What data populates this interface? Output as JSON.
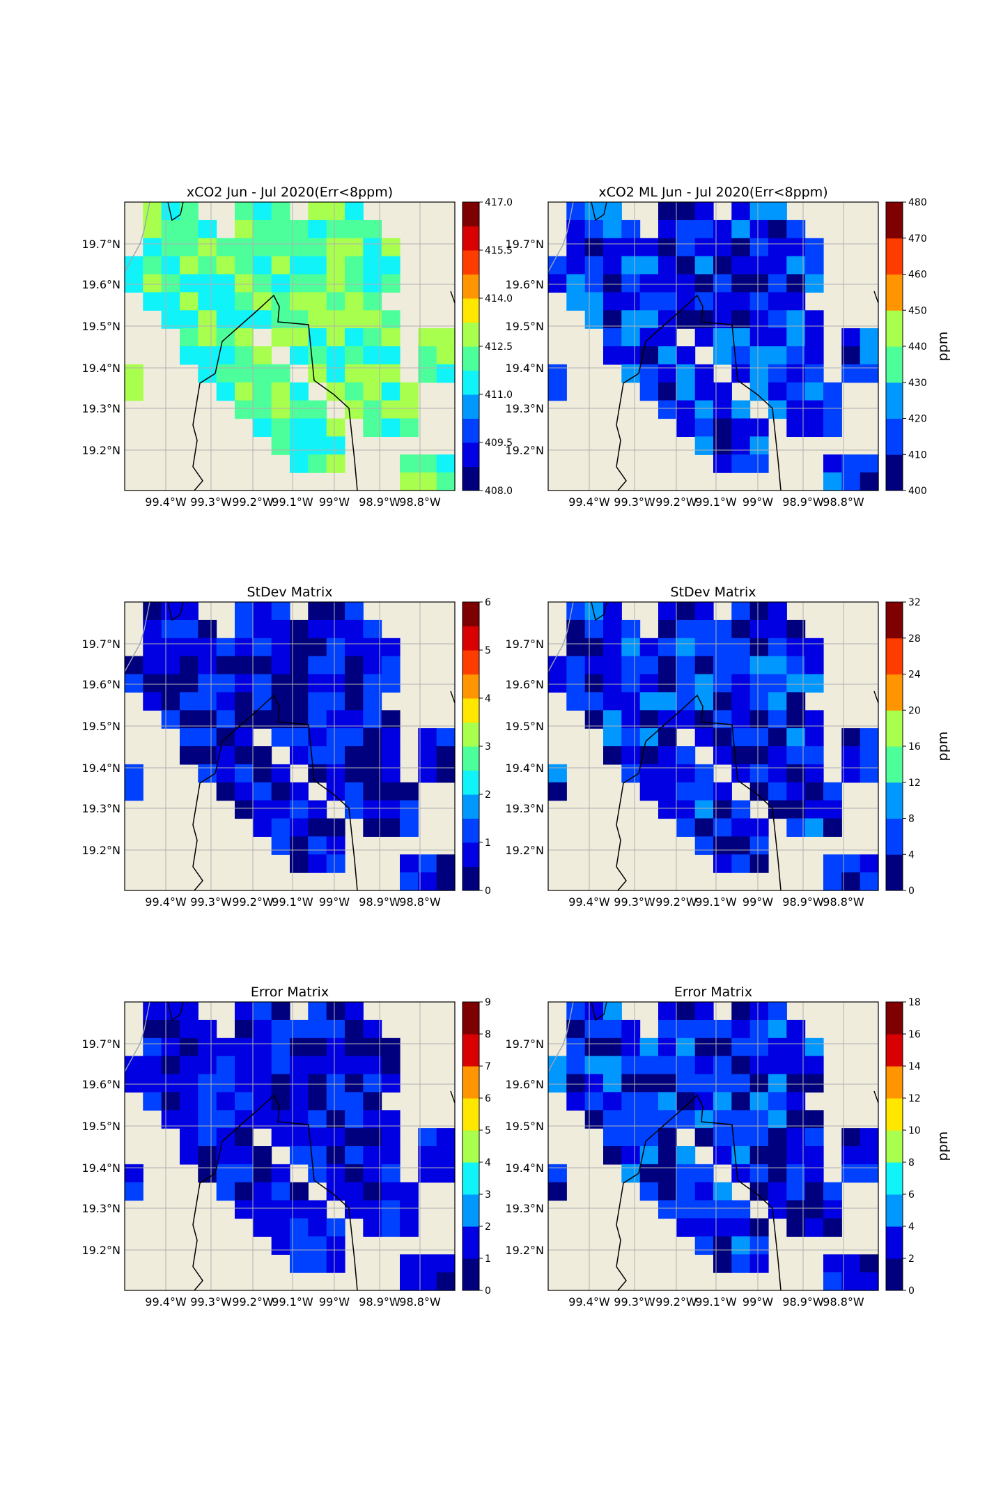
{
  "colormap": [
    "#00007f",
    "#0000e3",
    "#0040ff",
    "#0098ff",
    "#0ff3f9",
    "#4dff9b",
    "#a8ff4d",
    "#ffe700",
    "#ff9500",
    "#ff3c00",
    "#d80000",
    "#7f0000"
  ],
  "land_color": "#efecdc",
  "lat_ticks": [
    "19.7°N",
    "19.6°N",
    "19.5°N",
    "19.4°N",
    "19.3°N",
    "19.2°N"
  ],
  "lon_ticks": [
    "99.4°W",
    "99.3°W",
    "99.2°W",
    "99.1°W",
    "99°W",
    "98.9°W",
    "98.8°W"
  ],
  "panels": [
    {
      "id": "p1",
      "title": "xCO2 Jun - Jul 2020(Err<8ppm)",
      "pattern": "A",
      "base": 5,
      "var": 1.3,
      "cbar": {
        "label": "",
        "levels": 12,
        "ticks": [
          "408.0",
          "409.5",
          "411.0",
          "412.5",
          "414.0",
          "415.5",
          "417.0"
        ],
        "tick_every": 2,
        "first_tick_at": 0
      }
    },
    {
      "id": "p2",
      "title": "xCO2 ML Jun - Jul 2020(Err<8ppm)",
      "pattern": "A",
      "base": 1.6,
      "var": 1.5,
      "cbar": {
        "label": "ppm",
        "levels": 8,
        "ticks": [
          "400",
          "410",
          "420",
          "430",
          "440",
          "450",
          "460",
          "470",
          "480"
        ],
        "tick_every": 1,
        "first_tick_at": 0
      }
    },
    {
      "id": "p3",
      "title": "StDev Matrix",
      "pattern": "B",
      "base": 1,
      "var": 1.4,
      "cbar": {
        "label": "",
        "levels": 12,
        "ticks": [
          "0",
          "1",
          "2",
          "3",
          "4",
          "5",
          "6"
        ],
        "tick_every": 2,
        "first_tick_at": 0
      }
    },
    {
      "id": "p4",
      "title": "StDev Matrix",
      "pattern": "B",
      "base": 1.3,
      "var": 1.6,
      "cbar": {
        "label": "ppm",
        "levels": 8,
        "ticks": [
          "0",
          "4",
          "8",
          "12",
          "16",
          "20",
          "24",
          "28",
          "32"
        ],
        "tick_every": 1,
        "first_tick_at": 0
      }
    },
    {
      "id": "p5",
      "title": "Error Matrix",
      "pattern": "B",
      "base": 1,
      "var": 0.9,
      "cbar": {
        "label": "",
        "levels": 9,
        "ticks": [
          "0",
          "1",
          "2",
          "3",
          "4",
          "5",
          "6",
          "7",
          "8",
          "9"
        ],
        "tick_every": 1,
        "first_tick_at": 0
      }
    },
    {
      "id": "p6",
      "title": "Error Matrix",
      "pattern": "B",
      "base": 1.3,
      "var": 1.6,
      "cbar": {
        "label": "ppm",
        "levels": 9,
        "ticks": [
          "0",
          "2",
          "4",
          "6",
          "8",
          "10",
          "12",
          "14",
          "16",
          "18"
        ],
        "tick_every": 1,
        "first_tick_at": 0
      }
    }
  ]
}
